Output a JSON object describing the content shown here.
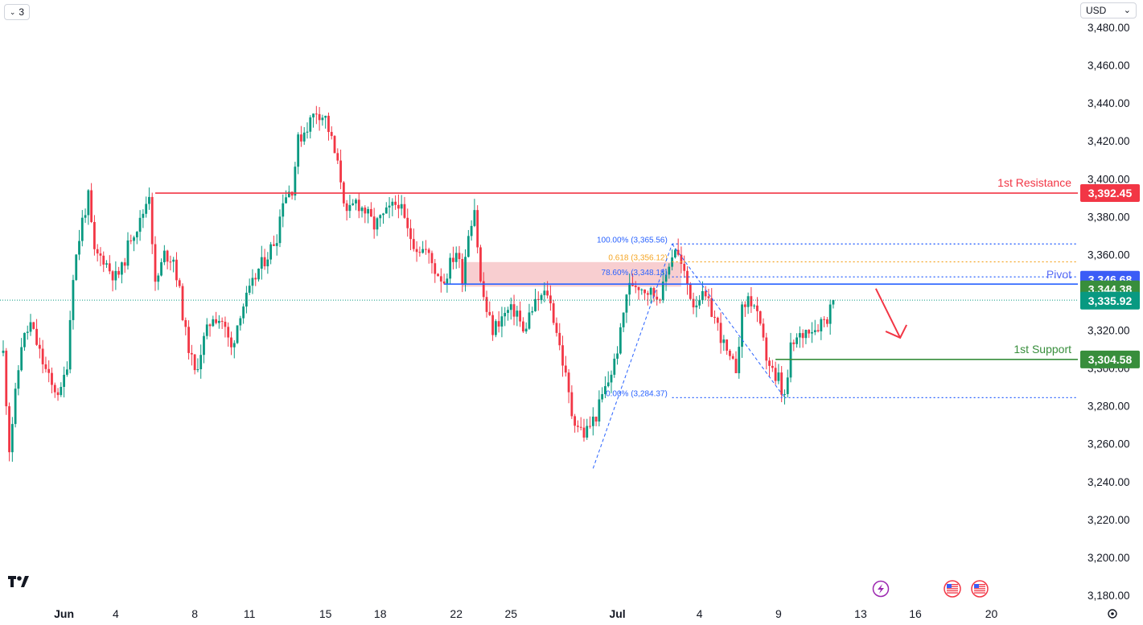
{
  "toolbar": {
    "interval_label": "3",
    "interval_icon": "chevron-down-icon",
    "currency": "USD",
    "logo": "TV"
  },
  "colors": {
    "up": "#089981",
    "down": "#f23645",
    "resistance": "#f23645",
    "support": "#388e3c",
    "pivot_line": "#2962ff",
    "pivot_text": "#5b6ef5",
    "pivot_tag": "#3b5cf6",
    "fib": "#2962ff",
    "fib_618": "#f5a524",
    "zone": "#f7c5c8",
    "arrow": "#f23645",
    "last_price": "#089981"
  },
  "chart_data": {
    "type": "candlestick",
    "title": "",
    "ylim": [
      3180,
      3480
    ],
    "y_ticks": [
      3480,
      3460,
      3440,
      3420,
      3400,
      3380,
      3360,
      3340,
      3320,
      3300,
      3280,
      3260,
      3240,
      3220,
      3200,
      3180
    ],
    "y_tick_labels": [
      "3,480.00",
      "3,460.00",
      "3,440.00",
      "3,420.00",
      "3,400.00",
      "3,380.00",
      "3,360.00",
      "3,340.00",
      "3,320.00",
      "3,300.00",
      "3,280.00",
      "3,260.00",
      "3,240.00",
      "3,220.00",
      "3,200.00",
      "3,180.00"
    ],
    "x_ticks": [
      {
        "label": "Jun",
        "bold": true,
        "i": 20
      },
      {
        "label": "4",
        "bold": false,
        "i": 37
      },
      {
        "label": "8",
        "bold": false,
        "i": 63
      },
      {
        "label": "11",
        "bold": false,
        "i": 81
      },
      {
        "label": "15",
        "bold": false,
        "i": 106
      },
      {
        "label": "18",
        "bold": false,
        "i": 124
      },
      {
        "label": "22",
        "bold": false,
        "i": 149
      },
      {
        "label": "25",
        "bold": false,
        "i": 167
      },
      {
        "label": "Jul",
        "bold": true,
        "i": 202
      },
      {
        "label": "4",
        "bold": false,
        "i": 229
      },
      {
        "label": "9",
        "bold": false,
        "i": 255
      },
      {
        "label": "13",
        "bold": false,
        "i": 282
      },
      {
        "label": "16",
        "bold": false,
        "i": 300
      },
      {
        "label": "20",
        "bold": false,
        "i": 325
      }
    ],
    "total_slots": 330,
    "waypoints": [
      [
        0,
        3308
      ],
      [
        2,
        3258
      ],
      [
        6,
        3313
      ],
      [
        9,
        3323
      ],
      [
        13,
        3303
      ],
      [
        16,
        3290
      ],
      [
        19,
        3287
      ],
      [
        21,
        3303
      ],
      [
        23,
        3350
      ],
      [
        26,
        3378
      ],
      [
        28,
        3390
      ],
      [
        30,
        3360
      ],
      [
        33,
        3358
      ],
      [
        35,
        3352
      ],
      [
        37,
        3348
      ],
      [
        39,
        3352
      ],
      [
        42,
        3370
      ],
      [
        45,
        3377
      ],
      [
        48,
        3393
      ],
      [
        50,
        3343
      ],
      [
        53,
        3360
      ],
      [
        56,
        3358
      ],
      [
        58,
        3340
      ],
      [
        60,
        3318
      ],
      [
        63,
        3297
      ],
      [
        66,
        3315
      ],
      [
        69,
        3328
      ],
      [
        72,
        3325
      ],
      [
        75,
        3310
      ],
      [
        78,
        3330
      ],
      [
        81,
        3340
      ],
      [
        84,
        3352
      ],
      [
        87,
        3360
      ],
      [
        90,
        3370
      ],
      [
        92,
        3390
      ],
      [
        95,
        3395
      ],
      [
        97,
        3420
      ],
      [
        100,
        3428
      ],
      [
        103,
        3436
      ],
      [
        106,
        3432
      ],
      [
        108,
        3420
      ],
      [
        111,
        3400
      ],
      [
        113,
        3380
      ],
      [
        116,
        3388
      ],
      [
        119,
        3383
      ],
      [
        122,
        3375
      ],
      [
        125,
        3380
      ],
      [
        128,
        3385
      ],
      [
        130,
        3388
      ],
      [
        133,
        3372
      ],
      [
        136,
        3364
      ],
      [
        139,
        3362
      ],
      [
        142,
        3352
      ],
      [
        145,
        3346
      ],
      [
        147,
        3355
      ],
      [
        149,
        3362
      ],
      [
        151,
        3348
      ],
      [
        153,
        3372
      ],
      [
        155,
        3385
      ],
      [
        157,
        3345
      ],
      [
        159,
        3330
      ],
      [
        161,
        3320
      ],
      [
        163,
        3325
      ],
      [
        166,
        3330
      ],
      [
        169,
        3330
      ],
      [
        171,
        3318
      ],
      [
        173,
        3328
      ],
      [
        176,
        3336
      ],
      [
        179,
        3340
      ],
      [
        182,
        3320
      ],
      [
        185,
        3295
      ],
      [
        187,
        3276
      ],
      [
        189,
        3270
      ],
      [
        191,
        3265
      ],
      [
        193,
        3270
      ],
      [
        195,
        3275
      ],
      [
        197,
        3285
      ],
      [
        199,
        3293
      ],
      [
        201,
        3303
      ],
      [
        203,
        3318
      ],
      [
        205,
        3340
      ],
      [
        207,
        3345
      ],
      [
        209,
        3344
      ],
      [
        211,
        3342
      ],
      [
        213,
        3340
      ],
      [
        215,
        3338
      ],
      [
        217,
        3342
      ],
      [
        219,
        3356
      ],
      [
        221,
        3364
      ],
      [
        223,
        3354
      ],
      [
        225,
        3344
      ],
      [
        227,
        3334
      ],
      [
        229,
        3338
      ],
      [
        231,
        3336
      ],
      [
        233,
        3330
      ],
      [
        235,
        3322
      ],
      [
        237,
        3312
      ],
      [
        239,
        3303
      ],
      [
        241,
        3300
      ],
      [
        243,
        3330
      ],
      [
        245,
        3337
      ],
      [
        247,
        3333
      ],
      [
        249,
        3320
      ],
      [
        251,
        3306
      ],
      [
        253,
        3298
      ],
      [
        254,
        3291
      ],
      [
        255,
        3295
      ],
      [
        256,
        3287
      ],
      [
        257,
        3284
      ],
      [
        258,
        3295
      ],
      [
        259,
        3310
      ],
      [
        261,
        3315
      ],
      [
        263,
        3318
      ],
      [
        265,
        3322
      ],
      [
        267,
        3321
      ],
      [
        269,
        3325
      ],
      [
        271,
        3327
      ],
      [
        273,
        3336
      ]
    ],
    "current_price": 3335.92,
    "current_price_label": "3,335.92",
    "levels": [
      {
        "name": "1st Resistance",
        "value": 3392.45,
        "label": "3,392.45",
        "start_i": 50
      },
      {
        "name": "Pivot",
        "value": 3344.38,
        "label": "3,344.38",
        "start_i": 145
      },
      {
        "name": "1st Support",
        "value": 3304.58,
        "label": "3,304.58",
        "start_i": 254
      }
    ],
    "pivot_upper": {
      "value": 3346.68,
      "label": "3,346.68"
    },
    "supply_zone": {
      "from_i": 151,
      "to_i": 223,
      "y_low": 3343,
      "y_high": 3356
    },
    "fibonacci": [
      {
        "ratio": "100.00%",
        "value": 3365.56,
        "text": "100.00% (3,365.56)"
      },
      {
        "ratio": "0.618",
        "value": 3356.12,
        "text": "0.618 (3,356.12)"
      },
      {
        "ratio": "78.60%",
        "value": 3348.18,
        "text": "78.60% (3,348.18)"
      },
      {
        "ratio": "0.00%",
        "value": 3284.37,
        "text": "0.00% (3,284.37)"
      }
    ],
    "fib_swing_up": {
      "from": [
        194,
        3247
      ],
      "to": [
        220,
        3365.56
      ]
    },
    "fib_swing_down": {
      "from": [
        220,
        3365.56
      ],
      "to": [
        257,
        3284.37
      ]
    },
    "arrow": {
      "from": [
        287,
        3342
      ],
      "to": [
        295,
        3316
      ]
    },
    "event_icons": [
      "lightning-icon",
      "us-flag-icon",
      "us-flag-icon"
    ]
  }
}
